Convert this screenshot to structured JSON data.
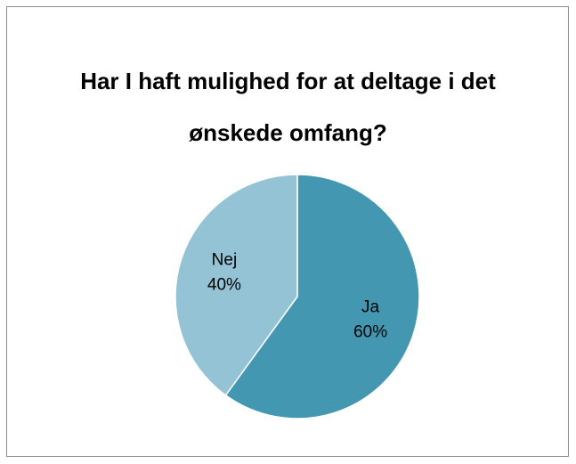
{
  "chart_data": {
    "type": "pie",
    "title": "Har I haft mulighed for at deltage i det ønskede omfang?",
    "categories": [
      "Ja",
      "Nej"
    ],
    "values": [
      60,
      40
    ],
    "value_labels": [
      "60%",
      "40%"
    ],
    "colors": [
      "#4397b0",
      "#93c3d5"
    ]
  }
}
